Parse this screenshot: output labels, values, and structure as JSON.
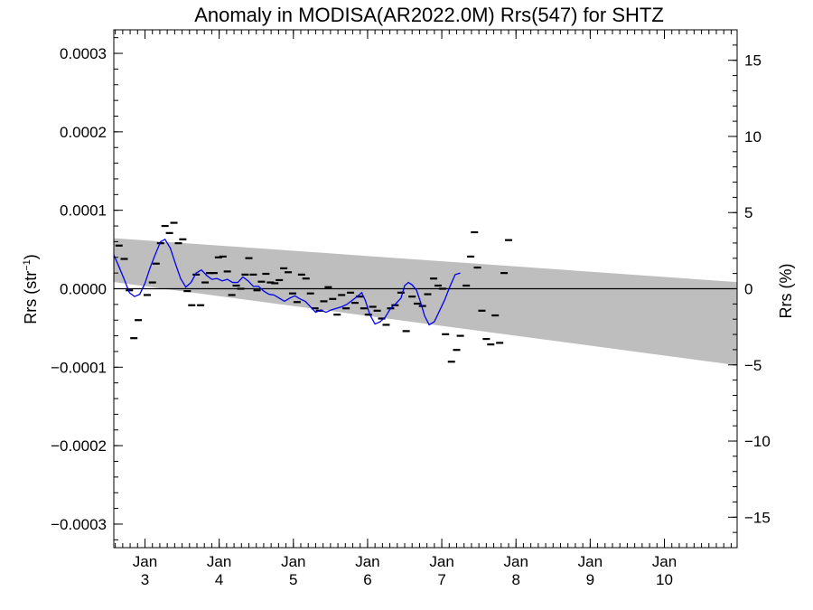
{
  "chart_data": {
    "type": "scatter",
    "title": "Anomaly in MODISA(AR2022.0M) Rrs(547) for SHTZ",
    "ylabel_left": "Rrs (str",
    "ylabel_left_sup": "−1",
    "ylabel_left_close": ")",
    "ylabel_right": "Rrs (%)",
    "xlim": [
      2.58,
      10.98
    ],
    "ylim": [
      -0.00033,
      0.00033
    ],
    "ylim_right": [
      -17,
      17
    ],
    "x_ticks": [
      {
        "x": 3,
        "month": "Jan",
        "day": "3"
      },
      {
        "x": 4,
        "month": "Jan",
        "day": "4"
      },
      {
        "x": 5,
        "month": "Jan",
        "day": "5"
      },
      {
        "x": 6,
        "month": "Jan",
        "day": "6"
      },
      {
        "x": 7,
        "month": "Jan",
        "day": "7"
      },
      {
        "x": 8,
        "month": "Jan",
        "day": "8"
      },
      {
        "x": 9,
        "month": "Jan",
        "day": "9"
      },
      {
        "x": 10,
        "month": "Jan",
        "day": "10"
      }
    ],
    "y_ticks_left": [
      {
        "v": 0.0003,
        "label": "0.0003"
      },
      {
        "v": 0.0002,
        "label": "0.0002"
      },
      {
        "v": 0.0001,
        "label": "0.0001"
      },
      {
        "v": 0,
        "label": "0.0000"
      },
      {
        "v": -0.0001,
        "label": "−0.0001"
      },
      {
        "v": -0.0002,
        "label": "−0.0002"
      },
      {
        "v": -0.0003,
        "label": "−0.0003"
      }
    ],
    "y_ticks_right": [
      {
        "v": 15,
        "label": "15"
      },
      {
        "v": 10,
        "label": "10"
      },
      {
        "v": 5,
        "label": "5"
      },
      {
        "v": 0,
        "label": "0"
      },
      {
        "v": -5,
        "label": "−5"
      },
      {
        "v": -10,
        "label": "−10"
      },
      {
        "v": -15,
        "label": "−15"
      }
    ],
    "band": {
      "x": [
        2.58,
        10.98
      ],
      "upper": [
        6.45e-05,
        8.5e-06
      ],
      "lower": [
        8.5e-06,
        -9.75e-05
      ]
    },
    "colors": {
      "band": "#bebebe",
      "smooth_line": "#0000ee",
      "points": "#000000",
      "zero_line": "#000000"
    },
    "points": [
      [
        2.65,
        5.5e-05
      ],
      [
        2.72,
        3.8e-05
      ],
      [
        2.79,
        -2e-06
      ],
      [
        2.85,
        -6.3e-05
      ],
      [
        2.91,
        -4e-05
      ],
      [
        3.03,
        -8e-06
      ],
      [
        3.1,
        8e-06
      ],
      [
        3.15,
        3.2e-05
      ],
      [
        3.21,
        5.8e-05
      ],
      [
        3.27,
        8e-05
      ],
      [
        3.33,
        7.1e-05
      ],
      [
        3.39,
        8.4e-05
      ],
      [
        3.45,
        5.8e-05
      ],
      [
        3.51,
        6.3e-05
      ],
      [
        3.57,
        -3e-06
      ],
      [
        3.63,
        -2.1e-05
      ],
      [
        3.69,
        1.8e-05
      ],
      [
        3.75,
        -2.1e-05
      ],
      [
        3.81,
        8e-06
      ],
      [
        3.87,
        2e-05
      ],
      [
        3.93,
        2e-05
      ],
      [
        3.99,
        4e-05
      ],
      [
        4.05,
        4.1e-05
      ],
      [
        4.11,
        2.2e-05
      ],
      [
        4.17,
        -8e-06
      ],
      [
        4.23,
        4e-06
      ],
      [
        4.29,
        0.0
      ],
      [
        4.35,
        1.8e-05
      ],
      [
        4.4,
        3.9e-05
      ],
      [
        4.46,
        1.8e-05
      ],
      [
        4.51,
        -2e-06
      ],
      [
        4.57,
        9e-06
      ],
      [
        4.63,
        1.9e-05
      ],
      [
        4.69,
        8e-06
      ],
      [
        4.75,
        7e-06
      ],
      [
        4.81,
        1.1e-05
      ],
      [
        4.87,
        2.6e-05
      ],
      [
        4.93,
        2.1e-05
      ],
      [
        4.99,
        -6e-06
      ],
      [
        5.05,
        -1.7e-05
      ],
      [
        5.11,
        1.8e-05
      ],
      [
        5.17,
        1.3e-05
      ],
      [
        5.23,
        -6e-06
      ],
      [
        5.29,
        -2.5e-05
      ],
      [
        5.35,
        -2.8e-05
      ],
      [
        5.41,
        -1.6e-05
      ],
      [
        5.47,
        2e-06
      ],
      [
        5.53,
        -1.3e-05
      ],
      [
        5.59,
        -3.3e-05
      ],
      [
        5.65,
        -8e-06
      ],
      [
        5.71,
        -2.5e-05
      ],
      [
        5.77,
        -5e-06
      ],
      [
        5.83,
        -1.8e-05
      ],
      [
        5.89,
        -1e-05
      ],
      [
        5.95,
        -2.5e-05
      ],
      [
        6.01,
        -3.3e-05
      ],
      [
        6.07,
        -2.3e-05
      ],
      [
        6.13,
        -2.8e-05
      ],
      [
        6.19,
        -3.8e-05
      ],
      [
        6.25,
        -4.6e-05
      ],
      [
        6.31,
        -2.5e-05
      ],
      [
        6.37,
        -2.1e-05
      ],
      [
        6.45,
        -5e-06
      ],
      [
        6.52,
        -5.4e-05
      ],
      [
        6.6,
        -1e-05
      ],
      [
        6.67,
        -1.9e-05
      ],
      [
        6.74,
        -2.2e-05
      ],
      [
        6.81,
        -7e-06
      ],
      [
        6.89,
        1.3e-05
      ],
      [
        6.95,
        4e-06
      ],
      [
        7.01,
        0.0
      ],
      [
        7.05,
        -5.8e-05
      ],
      [
        7.13,
        -9.3e-05
      ],
      [
        7.2,
        -7.8e-05
      ],
      [
        7.25,
        -6e-05
      ],
      [
        7.33,
        4e-06
      ],
      [
        7.39,
        4.1e-05
      ],
      [
        7.44,
        7.2e-05
      ],
      [
        7.48,
        2.7e-05
      ],
      [
        7.54,
        -2.8e-05
      ],
      [
        7.6,
        -6.4e-05
      ],
      [
        7.66,
        -7.1e-05
      ],
      [
        7.72,
        -3.4e-05
      ],
      [
        7.78,
        -6.9e-05
      ],
      [
        7.84,
        2e-05
      ],
      [
        7.9,
        6.2e-05
      ]
    ],
    "smooth": [
      [
        2.58,
        4.3e-05
      ],
      [
        2.65,
        2.8e-05
      ],
      [
        2.72,
        1.2e-05
      ],
      [
        2.79,
        -5e-06
      ],
      [
        2.86,
        -1e-05
      ],
      [
        2.93,
        -7e-06
      ],
      [
        3.0,
        7e-06
      ],
      [
        3.07,
        2.7e-05
      ],
      [
        3.14,
        4.4e-05
      ],
      [
        3.21,
        6e-05
      ],
      [
        3.27,
        6.3e-05
      ],
      [
        3.34,
        5.2e-05
      ],
      [
        3.41,
        3.2e-05
      ],
      [
        3.48,
        1.3e-05
      ],
      [
        3.55,
        2e-06
      ],
      [
        3.62,
        8e-06
      ],
      [
        3.69,
        2e-05
      ],
      [
        3.76,
        2.4e-05
      ],
      [
        3.83,
        1.7e-05
      ],
      [
        3.9,
        1.2e-05
      ],
      [
        3.97,
        1.3e-05
      ],
      [
        4.04,
        1e-05
      ],
      [
        4.11,
        1.2e-05
      ],
      [
        4.18,
        8e-06
      ],
      [
        4.25,
        8e-06
      ],
      [
        4.32,
        1.5e-05
      ],
      [
        4.39,
        1e-05
      ],
      [
        4.46,
        3e-06
      ],
      [
        4.53,
        3e-06
      ],
      [
        4.6,
        -3e-06
      ],
      [
        4.67,
        -7e-06
      ],
      [
        4.74,
        -8e-06
      ],
      [
        4.81,
        -1.2e-05
      ],
      [
        4.88,
        -1.6e-05
      ],
      [
        4.95,
        -1.2e-05
      ],
      [
        5.02,
        -9e-06
      ],
      [
        5.09,
        -1.3e-05
      ],
      [
        5.16,
        -1.6e-05
      ],
      [
        5.23,
        -2.3e-05
      ],
      [
        5.3,
        -3e-05
      ],
      [
        5.37,
        -2.7e-05
      ],
      [
        5.44,
        -3e-05
      ],
      [
        5.51,
        -2.7e-05
      ],
      [
        5.58,
        -2.5e-05
      ],
      [
        5.65,
        -2.3e-05
      ],
      [
        5.72,
        -2e-05
      ],
      [
        5.79,
        -1.5e-05
      ],
      [
        5.86,
        -1e-05
      ],
      [
        5.92,
        -5e-06
      ],
      [
        5.97,
        -1.5e-05
      ],
      [
        6.03,
        -3.3e-05
      ],
      [
        6.1,
        -4.5e-05
      ],
      [
        6.17,
        -4.2e-05
      ],
      [
        6.24,
        -3.6e-05
      ],
      [
        6.31,
        -2.5e-05
      ],
      [
        6.38,
        -1.9e-05
      ],
      [
        6.45,
        -1.2e-05
      ],
      [
        6.5,
        4e-06
      ],
      [
        6.55,
        8e-06
      ],
      [
        6.6,
        5e-06
      ],
      [
        6.66,
        -2e-06
      ],
      [
        6.71,
        -1.6e-05
      ],
      [
        6.77,
        -3.5e-05
      ],
      [
        6.83,
        -4.6e-05
      ],
      [
        6.9,
        -4.2e-05
      ],
      [
        6.97,
        -2.8e-05
      ],
      [
        7.04,
        -1.4e-05
      ],
      [
        7.11,
        3e-06
      ],
      [
        7.18,
        1.8e-05
      ],
      [
        7.25,
        2e-05
      ]
    ]
  }
}
